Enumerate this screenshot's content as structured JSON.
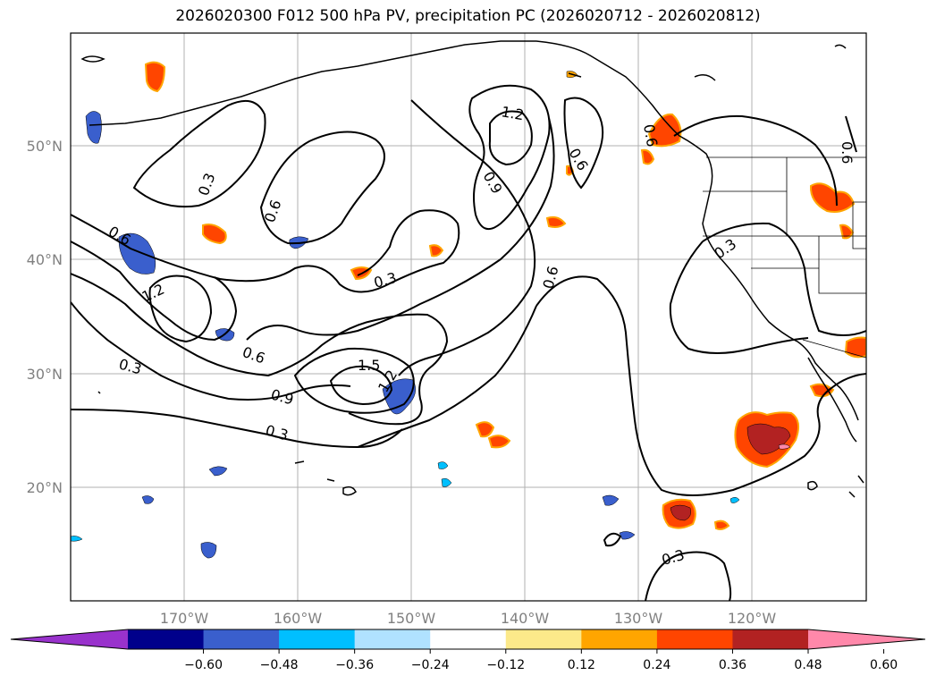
{
  "title": "2026020300 F012 500 hPa PV, precipitation PC (2026020712 - 2026020812)",
  "map": {
    "lon_labels": [
      "170°W",
      "160°W",
      "150°W",
      "140°W",
      "130°W",
      "120°W"
    ],
    "lat_labels": [
      "50°N",
      "40°N",
      "30°N",
      "20°N"
    ],
    "gridlines": true,
    "contour_field": "500 hPa PV",
    "contour_levels": [
      0.3,
      0.6,
      0.9,
      1.2,
      1.5
    ],
    "contour_labels": [
      "0.3",
      "0.6",
      "0.6",
      "0.6",
      "0.3",
      "0.6",
      "1.2",
      "0.9",
      "0.6",
      "0.6",
      "0.3",
      "0.3",
      "1.2",
      "0.6",
      "0.3",
      "0.9",
      "1.5",
      "1.2",
      "0.3",
      "0.3",
      "0.3",
      "0.6"
    ],
    "fill_field": "precipitation PC"
  },
  "colorbar": {
    "orientation": "horizontal",
    "extend": "both",
    "tick_labels": [
      "−0.60",
      "−0.48",
      "−0.36",
      "−0.24",
      "−0.12",
      "0.12",
      "0.24",
      "0.36",
      "0.48",
      "0.60"
    ],
    "colors": [
      "#9932cc",
      "#00008b",
      "#3a5fcd",
      "#00bfff",
      "#b0e2ff",
      "#ffffff",
      "#fce98a",
      "#ffa500",
      "#ff4500",
      "#b22222",
      "#ff88aa"
    ]
  }
}
